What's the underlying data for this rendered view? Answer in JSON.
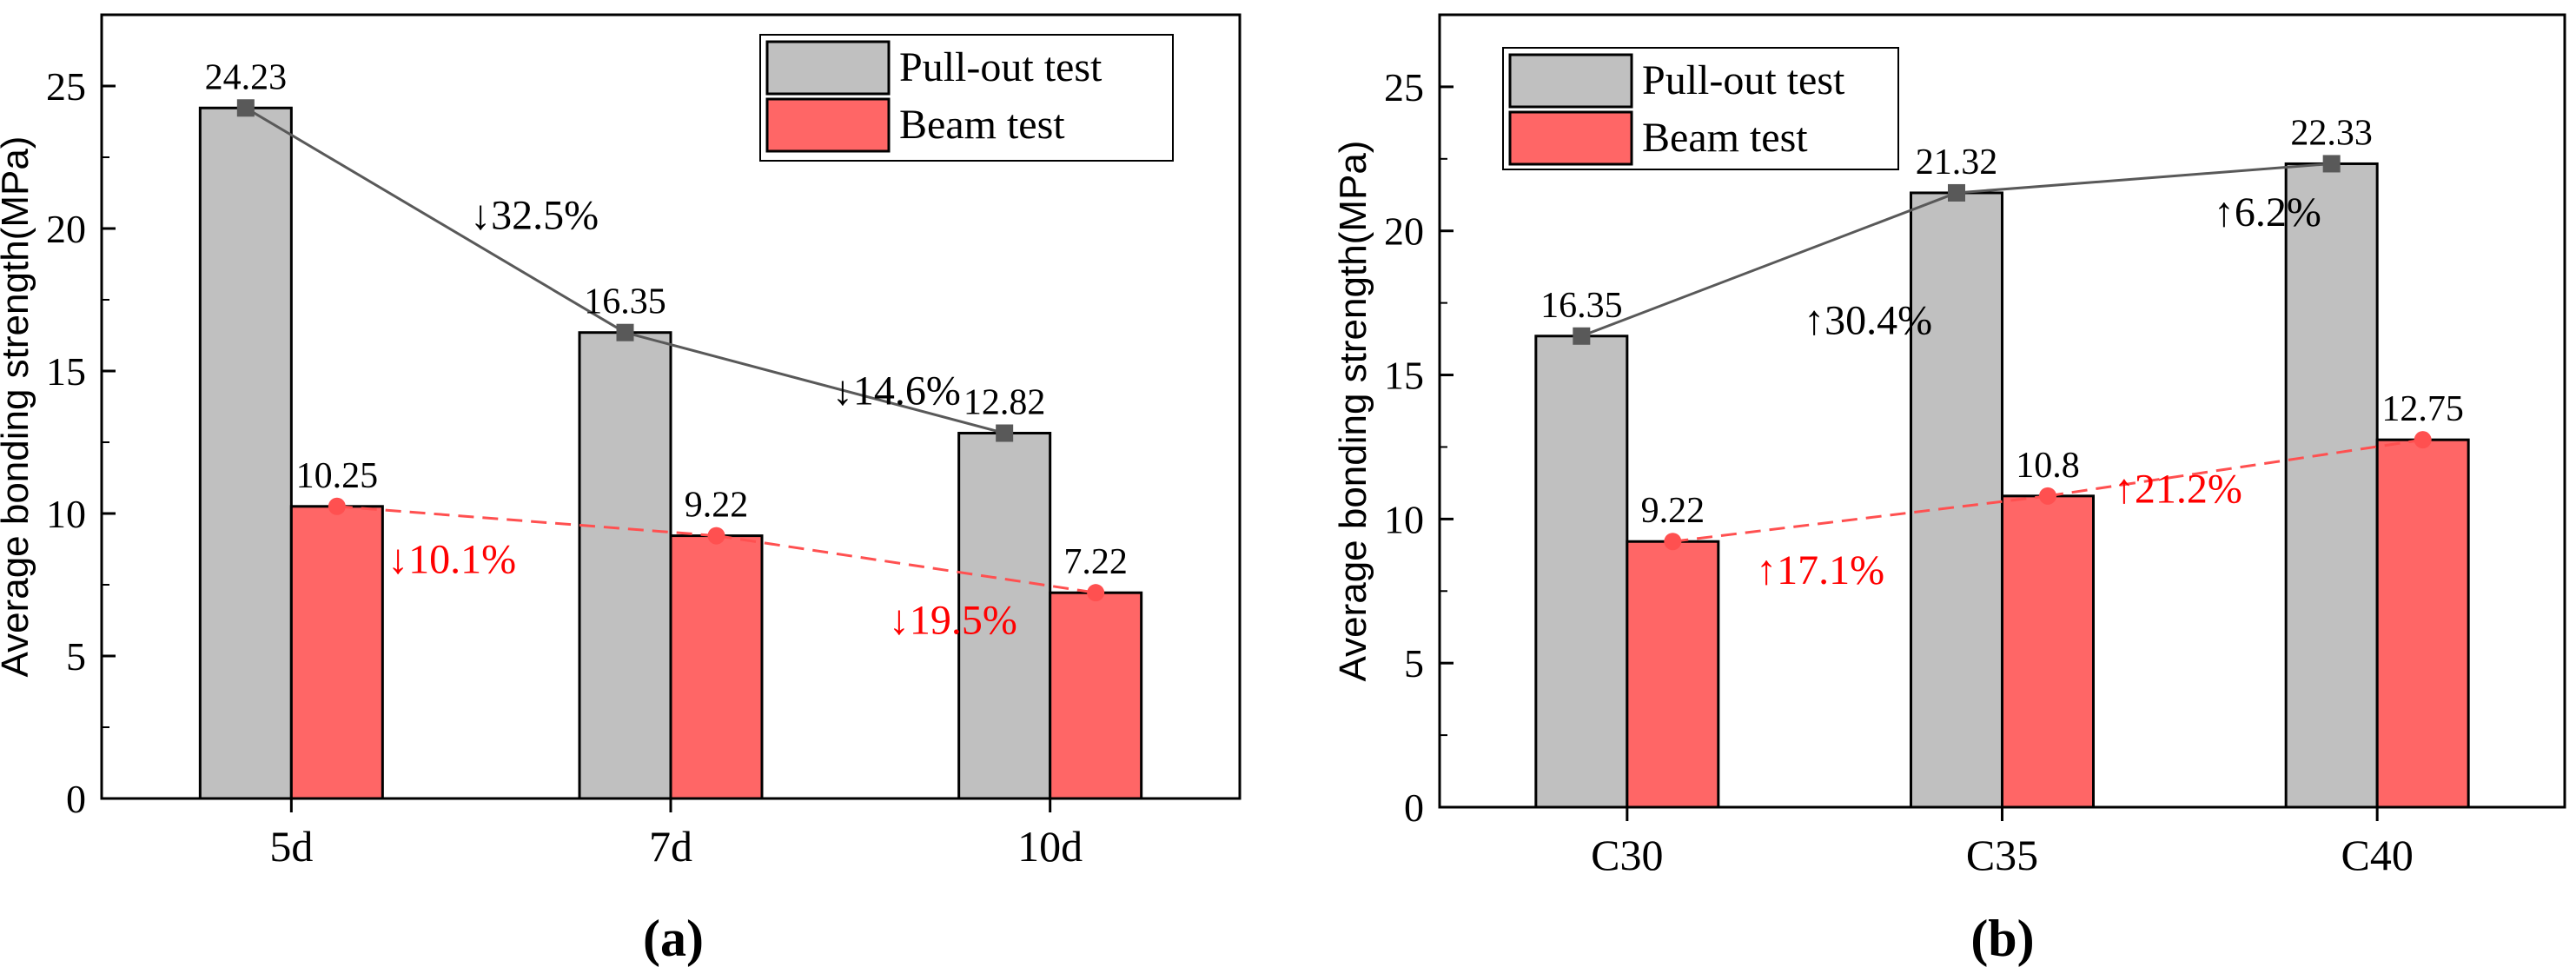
{
  "chart_data": [
    {
      "type": "bar",
      "panel_label": "(a)",
      "categories": [
        "5d",
        "7d",
        "10d"
      ],
      "ylabel": "Average bonding strength(MPa)",
      "ylim": [
        0,
        27.5
      ],
      "yticks": [
        0,
        5,
        10,
        15,
        20,
        25
      ],
      "legend_position": "top-right",
      "series": [
        {
          "name": "Pull-out test",
          "values": [
            24.23,
            16.35,
            12.82
          ],
          "labels": [
            "24.23",
            "16.35",
            "12.82"
          ],
          "color": "#c0c0c0",
          "line_color": "#595959",
          "line_style": "solid",
          "marker": "square"
        },
        {
          "name": "Beam test",
          "values": [
            10.25,
            9.22,
            7.22
          ],
          "labels": [
            "10.25",
            "9.22",
            "7.22"
          ],
          "color": "#ff6666",
          "line_color": "#ff5050",
          "line_style": "dashed",
          "marker": "circle"
        }
      ],
      "annotations": [
        {
          "text": "↓32.5%",
          "series": 0,
          "segment": 0,
          "color": "#000000"
        },
        {
          "text": "↓14.6%",
          "series": 0,
          "segment": 1,
          "color": "#000000"
        },
        {
          "text": "↓10.1%",
          "series": 1,
          "segment": 0,
          "color": "#ff0000"
        },
        {
          "text": "↓19.5%",
          "series": 1,
          "segment": 1,
          "color": "#ff0000"
        }
      ]
    },
    {
      "type": "bar",
      "panel_label": "(b)",
      "categories": [
        "C30",
        "C35",
        "C40"
      ],
      "ylabel": "Average bonding strength(MPa)",
      "ylim": [
        0,
        27.5
      ],
      "yticks": [
        0,
        5,
        10,
        15,
        20,
        25
      ],
      "legend_position": "top-left",
      "series": [
        {
          "name": "Pull-out test",
          "values": [
            16.35,
            21.32,
            22.33
          ],
          "labels": [
            "16.35",
            "21.32",
            "22.33"
          ],
          "color": "#c0c0c0",
          "line_color": "#595959",
          "line_style": "solid",
          "marker": "square"
        },
        {
          "name": "Beam test",
          "values": [
            9.22,
            10.8,
            12.75
          ],
          "labels": [
            "9.22",
            "10.8",
            "12.75"
          ],
          "color": "#ff6666",
          "line_color": "#ff5050",
          "line_style": "dashed",
          "marker": "circle"
        }
      ],
      "annotations": [
        {
          "text": "↑30.4%",
          "series": 0,
          "segment": 0,
          "color": "#000000"
        },
        {
          "text": "↑6.2%",
          "series": 0,
          "segment": 1,
          "color": "#000000"
        },
        {
          "text": "↑17.1%",
          "series": 1,
          "segment": 0,
          "color": "#ff0000"
        },
        {
          "text": "↑21.2%",
          "series": 1,
          "segment": 1,
          "color": "#ff0000"
        }
      ]
    }
  ]
}
